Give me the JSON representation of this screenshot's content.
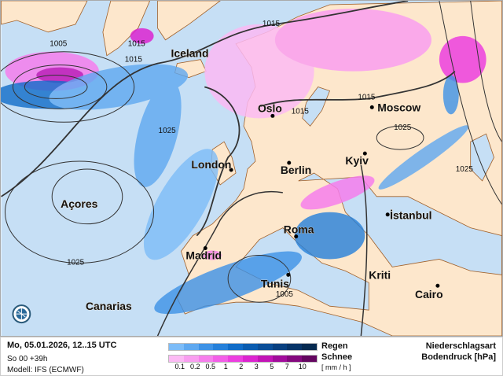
{
  "map": {
    "cities": [
      {
        "name": "Iceland",
        "dot": false
      },
      {
        "name": "Oslo",
        "dot": true
      },
      {
        "name": "Moscow",
        "dot": true
      },
      {
        "name": "London",
        "dot": true
      },
      {
        "name": "Berlin",
        "dot": true
      },
      {
        "name": "Kyiv",
        "dot": true
      },
      {
        "name": "Açores",
        "dot": false
      },
      {
        "name": "İstanbul",
        "dot": true
      },
      {
        "name": "Roma",
        "dot": true
      },
      {
        "name": "Madrid",
        "dot": true
      },
      {
        "name": "Tunis",
        "dot": true
      },
      {
        "name": "Kriti",
        "dot": false
      },
      {
        "name": "Cairo",
        "dot": true
      },
      {
        "name": "Canarias",
        "dot": false
      }
    ],
    "isobar_labels": [
      "1005",
      "1015",
      "1015",
      "1025",
      "1015",
      "1015",
      "1015",
      "1025",
      "1025",
      "1025",
      "1005"
    ],
    "colors": {
      "ocean": "#c6dff5",
      "land": "#fde7cc",
      "borders": "#a0602a"
    },
    "logo_icon": "globe-icon"
  },
  "footer": {
    "datetime": "Mo, 05.01.2026, 12..15 UTC",
    "run": "So 00 +39h",
    "model": "Modell: IFS (ECMWF)",
    "rain_label": "Regen",
    "snow_label": "Schnee",
    "unit": "[ mm / h ]",
    "title1": "Niederschlagsart",
    "title2": "Bodendruck [hPa]",
    "ticks": [
      "0.1",
      "0.2",
      "0.5",
      "1",
      "2",
      "3",
      "5",
      "7",
      "10"
    ],
    "rain_colors": [
      "#7cbcf8",
      "#5ea8f0",
      "#3d92e6",
      "#2580da",
      "#106cc8",
      "#0a5cb0",
      "#0a4e98",
      "#084080",
      "#063468",
      "#052a50"
    ],
    "snow_colors": [
      "#fcbaf4",
      "#f99ef0",
      "#f67eec",
      "#f35ee8",
      "#ec3ee0",
      "#dc24d0",
      "#c214b6",
      "#a20c9c",
      "#84087e",
      "#640660"
    ]
  }
}
